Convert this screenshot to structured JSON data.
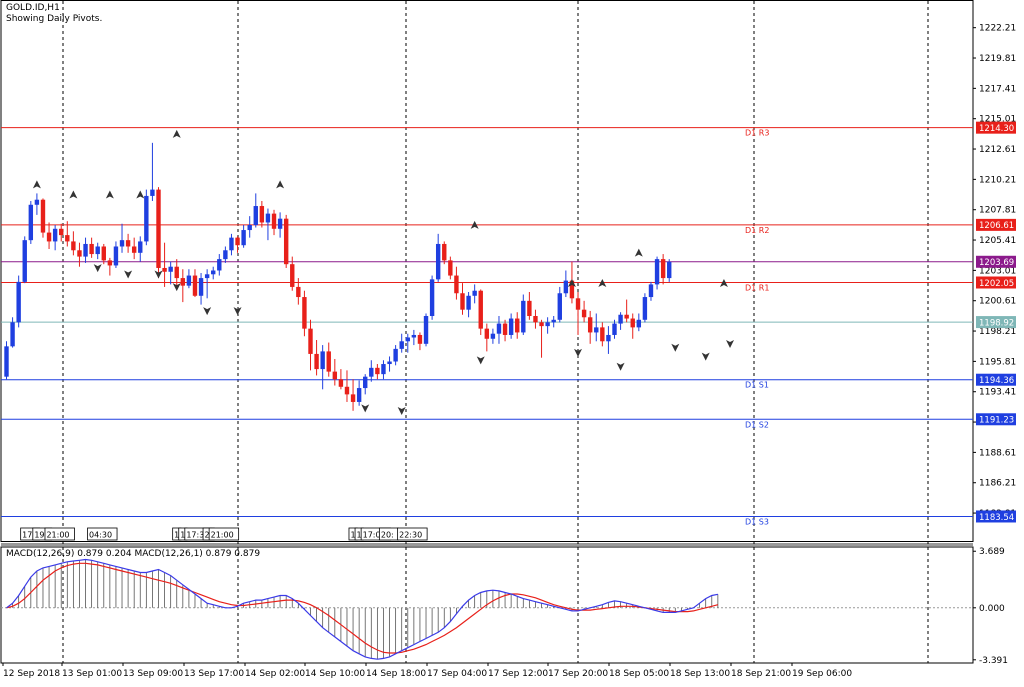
{
  "header": {
    "symbol": "GOLD.ID,H1",
    "subtitle": "Showing Daily Pivots."
  },
  "colors": {
    "bull": "#1f3fe0",
    "bear": "#e8201a",
    "resistance": "#e8201a",
    "support": "#1f3fe0",
    "pivot": "#8c1a8c",
    "bid": "#7fb7b7",
    "macd_line": "#3a3ae8",
    "signal_line": "#e8201a"
  },
  "chart_data": [
    {
      "type": "candlestick",
      "title": "GOLD.ID,H1",
      "ylim": [
        1181.6,
        1224.4
      ],
      "y_ticks": [
        "1222.21",
        "1219.81",
        "1217.41",
        "1215.01",
        "1212.61",
        "1210.21",
        "1207.81",
        "1205.41",
        "1203.01",
        "1200.61",
        "1198.21",
        "1195.81",
        "1193.41",
        "1191.01",
        "1188.61",
        "1186.21",
        "1183.81"
      ],
      "x_labels": [
        "12 Sep 2018",
        "13 Sep 01:00",
        "13 Sep 09:00",
        "13 Sep 17:00",
        "14 Sep 02:00",
        "14 Sep 10:00",
        "14 Sep 18:00",
        "17 Sep 04:00",
        "17 Sep 12:00",
        "17 Sep 20:00",
        "18 Sep 05:00",
        "18 Sep 13:00",
        "18 Sep 21:00",
        "19 Sep 06:00"
      ],
      "pivot_levels": [
        {
          "name": "D1 R3",
          "value": 1214.3,
          "kind": "resistance"
        },
        {
          "name": "D1 R2",
          "value": 1206.61,
          "kind": "resistance"
        },
        {
          "name": "D1 R1",
          "value": 1202.05,
          "kind": "resistance"
        },
        {
          "name": "D1 S1",
          "value": 1194.36,
          "kind": "support"
        },
        {
          "name": "D1 S2",
          "value": 1191.23,
          "kind": "support"
        },
        {
          "name": "D1 S3",
          "value": 1183.54,
          "kind": "support"
        }
      ],
      "price_badges": [
        {
          "label": "1214.30",
          "value": 1214.3,
          "kind": "resistance"
        },
        {
          "label": "1206.61",
          "value": 1206.61,
          "kind": "resistance"
        },
        {
          "label": "1203.69",
          "value": 1203.69,
          "kind": "pivot"
        },
        {
          "label": "1202.05",
          "value": 1202.05,
          "kind": "resistance"
        },
        {
          "label": "1198.92",
          "value": 1198.92,
          "kind": "bid"
        },
        {
          "label": "1194.36",
          "value": 1194.36,
          "kind": "support"
        },
        {
          "label": "1191.23",
          "value": 1191.23,
          "kind": "support"
        },
        {
          "label": "1183.54",
          "value": 1183.54,
          "kind": "support"
        }
      ],
      "period_time_labels": [
        {
          "text": "17:",
          "bar": 2
        },
        {
          "text": "19:",
          "bar": 4
        },
        {
          "text": "21:00",
          "bar": 6
        },
        {
          "text": "04:30",
          "bar": 13
        },
        {
          "text": "1",
          "bar": 27
        },
        {
          "text": "1",
          "bar": 28
        },
        {
          "text": "17:30",
          "bar": 29
        },
        {
          "text": "2",
          "bar": 32
        },
        {
          "text": "21:00",
          "bar": 33
        },
        {
          "text": "1",
          "bar": 56
        },
        {
          "text": "1",
          "bar": 57
        },
        {
          "text": "17:00",
          "bar": 58
        },
        {
          "text": "20:",
          "bar": 61
        },
        {
          "text": "22:30",
          "bar": 64
        }
      ],
      "candles": [
        [
          1194.6,
          1197.4,
          1194.4,
          1197.0
        ],
        [
          1197.0,
          1199.3,
          1196.9,
          1198.9
        ],
        [
          1198.9,
          1202.6,
          1198.5,
          1202.1
        ],
        [
          1202.1,
          1205.7,
          1202.0,
          1205.4
        ],
        [
          1205.4,
          1208.5,
          1205.1,
          1208.2
        ],
        [
          1208.2,
          1209.1,
          1207.4,
          1208.6
        ],
        [
          1208.6,
          1208.7,
          1205.6,
          1206.0
        ],
        [
          1206.0,
          1206.8,
          1204.7,
          1205.3
        ],
        [
          1205.3,
          1206.6,
          1204.6,
          1206.3
        ],
        [
          1206.3,
          1206.7,
          1205.3,
          1205.8
        ],
        [
          1205.8,
          1206.9,
          1204.9,
          1205.3
        ],
        [
          1205.3,
          1206.1,
          1204.2,
          1204.6
        ],
        [
          1204.6,
          1205.2,
          1203.3,
          1204.1
        ],
        [
          1204.1,
          1205.6,
          1203.6,
          1205.1
        ],
        [
          1205.1,
          1205.6,
          1204.0,
          1204.3
        ],
        [
          1204.3,
          1205.2,
          1203.9,
          1204.9
        ],
        [
          1204.9,
          1205.1,
          1203.5,
          1203.8
        ],
        [
          1203.8,
          1204.0,
          1202.6,
          1203.4
        ],
        [
          1203.4,
          1205.3,
          1203.2,
          1204.9
        ],
        [
          1204.9,
          1206.7,
          1204.4,
          1205.4
        ],
        [
          1205.4,
          1205.9,
          1204.4,
          1204.9
        ],
        [
          1204.9,
          1205.6,
          1203.9,
          1204.4
        ],
        [
          1204.4,
          1205.7,
          1203.7,
          1205.3
        ],
        [
          1205.3,
          1209.4,
          1205.0,
          1208.9
        ],
        [
          1208.9,
          1213.1,
          1208.5,
          1209.4
        ],
        [
          1209.4,
          1209.6,
          1202.4,
          1203.2
        ],
        [
          1203.2,
          1205.2,
          1201.7,
          1202.9
        ],
        [
          1202.9,
          1203.7,
          1201.9,
          1203.3
        ],
        [
          1203.3,
          1203.9,
          1201.6,
          1202.4
        ],
        [
          1202.4,
          1203.1,
          1200.5,
          1201.8
        ],
        [
          1201.8,
          1203.1,
          1201.6,
          1202.6
        ],
        [
          1202.6,
          1203.1,
          1200.9,
          1201.0
        ],
        [
          1201.0,
          1202.8,
          1200.3,
          1202.4
        ],
        [
          1202.4,
          1203.1,
          1200.8,
          1202.7
        ],
        [
          1202.7,
          1203.3,
          1202.3,
          1203.0
        ],
        [
          1203.0,
          1204.3,
          1202.6,
          1203.9
        ],
        [
          1203.9,
          1204.9,
          1203.6,
          1204.6
        ],
        [
          1204.6,
          1205.9,
          1204.2,
          1205.6
        ],
        [
          1205.6,
          1205.7,
          1204.4,
          1205.0
        ],
        [
          1205.0,
          1206.6,
          1204.8,
          1206.2
        ],
        [
          1206.2,
          1207.3,
          1205.6,
          1206.6
        ],
        [
          1206.6,
          1209.1,
          1206.4,
          1208.1
        ],
        [
          1208.1,
          1208.5,
          1206.4,
          1206.8
        ],
        [
          1206.8,
          1207.9,
          1205.4,
          1207.5
        ],
        [
          1207.5,
          1207.8,
          1205.8,
          1206.3
        ],
        [
          1206.3,
          1207.6,
          1205.6,
          1207.1
        ],
        [
          1207.1,
          1207.4,
          1203.2,
          1203.5
        ],
        [
          1203.5,
          1204.1,
          1201.4,
          1201.7
        ],
        [
          1201.7,
          1202.4,
          1200.3,
          1200.9
        ],
        [
          1200.9,
          1201.4,
          1197.8,
          1198.4
        ],
        [
          1198.4,
          1199.1,
          1195.1,
          1196.4
        ],
        [
          1196.4,
          1197.5,
          1194.7,
          1195.2
        ],
        [
          1195.2,
          1197.1,
          1193.6,
          1196.6
        ],
        [
          1196.6,
          1197.3,
          1194.6,
          1195.0
        ],
        [
          1195.0,
          1196.0,
          1193.9,
          1194.4
        ],
        [
          1194.4,
          1195.2,
          1193.6,
          1193.8
        ],
        [
          1193.8,
          1195.1,
          1192.6,
          1193.2
        ],
        [
          1193.2,
          1194.4,
          1191.9,
          1192.6
        ],
        [
          1192.6,
          1194.3,
          1192.3,
          1193.7
        ],
        [
          1193.7,
          1194.8,
          1193.2,
          1194.6
        ],
        [
          1194.6,
          1195.9,
          1194.2,
          1195.3
        ],
        [
          1195.3,
          1195.6,
          1194.4,
          1194.8
        ],
        [
          1194.8,
          1195.9,
          1194.4,
          1195.6
        ],
        [
          1195.6,
          1196.2,
          1195.0,
          1195.8
        ],
        [
          1195.8,
          1197.1,
          1195.5,
          1196.8
        ],
        [
          1196.8,
          1198.0,
          1196.5,
          1197.4
        ],
        [
          1197.4,
          1198.0,
          1196.5,
          1197.7
        ],
        [
          1197.7,
          1198.3,
          1197.1,
          1197.9
        ],
        [
          1197.9,
          1198.1,
          1196.7,
          1197.2
        ],
        [
          1197.2,
          1199.6,
          1197.0,
          1199.4
        ],
        [
          1199.4,
          1202.6,
          1199.1,
          1202.3
        ],
        [
          1202.3,
          1205.9,
          1202.1,
          1205.1
        ],
        [
          1205.1,
          1205.3,
          1203.5,
          1203.8
        ],
        [
          1203.8,
          1204.1,
          1202.3,
          1202.6
        ],
        [
          1202.6,
          1203.3,
          1200.7,
          1201.2
        ],
        [
          1201.2,
          1202.0,
          1199.5,
          1199.9
        ],
        [
          1199.9,
          1201.3,
          1199.3,
          1201.0
        ],
        [
          1201.0,
          1201.9,
          1200.4,
          1201.4
        ],
        [
          1201.4,
          1201.5,
          1197.9,
          1198.4
        ],
        [
          1198.4,
          1198.8,
          1196.6,
          1197.6
        ],
        [
          1197.6,
          1198.4,
          1197.2,
          1198.0
        ],
        [
          1198.0,
          1199.4,
          1197.2,
          1198.8
        ],
        [
          1198.8,
          1199.1,
          1197.4,
          1197.9
        ],
        [
          1197.9,
          1199.6,
          1197.6,
          1199.2
        ],
        [
          1199.2,
          1199.7,
          1197.6,
          1198.1
        ],
        [
          1198.1,
          1201.1,
          1197.9,
          1200.6
        ],
        [
          1200.6,
          1201.3,
          1199.1,
          1199.4
        ],
        [
          1199.4,
          1199.9,
          1198.4,
          1198.9
        ],
        [
          1198.9,
          1199.1,
          1196.1,
          1198.6
        ],
        [
          1198.6,
          1199.3,
          1198.0,
          1198.9
        ],
        [
          1198.9,
          1199.4,
          1198.5,
          1199.1
        ],
        [
          1199.1,
          1201.7,
          1198.9,
          1201.2
        ],
        [
          1201.2,
          1203.0,
          1200.9,
          1202.2
        ],
        [
          1202.2,
          1203.7,
          1200.4,
          1200.8
        ],
        [
          1200.8,
          1201.3,
          1197.9,
          1199.9
        ],
        [
          1199.9,
          1200.6,
          1198.9,
          1199.3
        ],
        [
          1199.3,
          1199.8,
          1197.2,
          1198.1
        ],
        [
          1198.1,
          1199.6,
          1197.4,
          1198.5
        ],
        [
          1198.5,
          1198.9,
          1197.0,
          1197.4
        ],
        [
          1197.4,
          1198.6,
          1196.4,
          1197.9
        ],
        [
          1197.9,
          1199.1,
          1197.6,
          1198.8
        ],
        [
          1198.8,
          1199.7,
          1198.3,
          1199.5
        ],
        [
          1199.5,
          1200.7,
          1198.9,
          1199.2
        ],
        [
          1199.2,
          1199.6,
          1197.6,
          1198.5
        ],
        [
          1198.5,
          1199.6,
          1198.2,
          1199.1
        ],
        [
          1199.1,
          1201.2,
          1198.9,
          1200.9
        ],
        [
          1200.9,
          1202.1,
          1200.6,
          1201.9
        ],
        [
          1201.9,
          1204.1,
          1201.5,
          1203.9
        ],
        [
          1203.9,
          1204.3,
          1201.9,
          1202.4
        ],
        [
          1202.4,
          1203.9,
          1202.1,
          1203.69
        ]
      ],
      "fractals": {
        "up": [
          {
            "bar": 5,
            "value": 1209.1
          },
          {
            "bar": 11,
            "value": 1208.3
          },
          {
            "bar": 17,
            "value": 1208.3
          },
          {
            "bar": 22,
            "value": 1208.3
          },
          {
            "bar": 28,
            "value": 1213.1
          },
          {
            "bar": 45,
            "value": 1209.1
          },
          {
            "bar": 77,
            "value": 1205.9
          },
          {
            "bar": 93,
            "value": 1201.3
          },
          {
            "bar": 98,
            "value": 1201.3
          },
          {
            "bar": 104,
            "value": 1203.7
          },
          {
            "bar": 118,
            "value": 1201.3
          }
        ],
        "down": [
          {
            "bar": 15,
            "value": 1203.9
          },
          {
            "bar": 20,
            "value": 1203.4
          },
          {
            "bar": 25,
            "value": 1203.4
          },
          {
            "bar": 28,
            "value": 1202.4
          },
          {
            "bar": 33,
            "value": 1200.5
          },
          {
            "bar": 38,
            "value": 1200.5
          },
          {
            "bar": 59,
            "value": 1192.8
          },
          {
            "bar": 65,
            "value": 1192.6
          },
          {
            "bar": 78,
            "value": 1196.6
          },
          {
            "bar": 94,
            "value": 1197.2
          },
          {
            "bar": 101,
            "value": 1196.1
          },
          {
            "bar": 110,
            "value": 1197.6
          },
          {
            "bar": 115,
            "value": 1196.9
          },
          {
            "bar": 119,
            "value": 1197.9
          }
        ]
      }
    },
    {
      "type": "macd",
      "title": "MACD(12,26,9) 0.879 0.204 MACD(12,26,1) 0.879 0.879",
      "ylim": [
        -3.6,
        3.9
      ],
      "y_ticks": [
        "3.689",
        "0.000",
        "-3.391"
      ],
      "macd": [
        0.0,
        0.3,
        0.8,
        1.4,
        2.0,
        2.4,
        2.6,
        2.7,
        2.8,
        2.9,
        3.0,
        3.05,
        3.1,
        3.15,
        3.1,
        3.0,
        2.9,
        2.8,
        2.7,
        2.6,
        2.5,
        2.4,
        2.3,
        2.3,
        2.4,
        2.5,
        2.3,
        2.1,
        1.8,
        1.5,
        1.2,
        0.9,
        0.6,
        0.3,
        0.2,
        0.1,
        0.0,
        0.0,
        0.1,
        0.3,
        0.4,
        0.5,
        0.5,
        0.6,
        0.7,
        0.8,
        0.8,
        0.6,
        0.3,
        -0.1,
        -0.5,
        -0.9,
        -1.3,
        -1.6,
        -1.9,
        -2.2,
        -2.5,
        -2.8,
        -3.0,
        -3.2,
        -3.3,
        -3.35,
        -3.3,
        -3.2,
        -3.0,
        -2.8,
        -2.6,
        -2.4,
        -2.2,
        -2.0,
        -1.8,
        -1.6,
        -1.3,
        -0.9,
        -0.4,
        0.1,
        0.5,
        0.8,
        1.0,
        1.1,
        1.15,
        1.1,
        1.0,
        0.9,
        0.75,
        0.6,
        0.5,
        0.4,
        0.3,
        0.2,
        0.1,
        0.0,
        -0.1,
        -0.2,
        -0.2,
        -0.1,
        0.0,
        0.1,
        0.2,
        0.35,
        0.45,
        0.4,
        0.3,
        0.2,
        0.1,
        0.0,
        -0.1,
        -0.2,
        -0.3,
        -0.3,
        -0.3,
        -0.2,
        -0.1,
        0.0,
        0.3,
        0.6,
        0.8,
        0.879
      ],
      "signal": [
        0.0,
        0.1,
        0.3,
        0.6,
        1.0,
        1.4,
        1.8,
        2.1,
        2.4,
        2.6,
        2.75,
        2.85,
        2.9,
        2.9,
        2.85,
        2.8,
        2.7,
        2.6,
        2.5,
        2.4,
        2.3,
        2.2,
        2.1,
        2.0,
        1.9,
        1.8,
        1.7,
        1.6,
        1.45,
        1.3,
        1.15,
        1.0,
        0.85,
        0.7,
        0.55,
        0.4,
        0.3,
        0.2,
        0.15,
        0.15,
        0.2,
        0.25,
        0.3,
        0.35,
        0.4,
        0.45,
        0.5,
        0.5,
        0.45,
        0.35,
        0.2,
        0.0,
        -0.25,
        -0.5,
        -0.8,
        -1.1,
        -1.4,
        -1.7,
        -2.0,
        -2.3,
        -2.55,
        -2.75,
        -2.9,
        -2.95,
        -2.95,
        -2.9,
        -2.8,
        -2.7,
        -2.55,
        -2.4,
        -2.2,
        -2.0,
        -1.8,
        -1.55,
        -1.3,
        -1.0,
        -0.7,
        -0.4,
        -0.1,
        0.2,
        0.45,
        0.65,
        0.8,
        0.9,
        0.9,
        0.85,
        0.75,
        0.65,
        0.5,
        0.35,
        0.2,
        0.1,
        0.0,
        -0.1,
        -0.15,
        -0.15,
        -0.15,
        -0.1,
        -0.05,
        0.0,
        0.05,
        0.1,
        0.1,
        0.1,
        0.05,
        0.0,
        -0.05,
        -0.1,
        -0.15,
        -0.2,
        -0.25,
        -0.25,
        -0.25,
        -0.2,
        -0.1,
        0.0,
        0.1,
        0.204
      ]
    }
  ]
}
